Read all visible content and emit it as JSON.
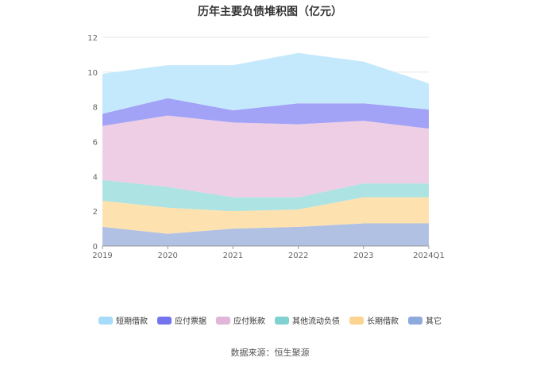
{
  "title": "历年主要负债堆积图（亿元）",
  "source": "数据来源：恒生聚源",
  "chart_data": {
    "type": "area",
    "stacked": true,
    "title": "历年主要负债堆积图（亿元）",
    "categories": [
      "2019",
      "2020",
      "2021",
      "2022",
      "2023",
      "2024Q1"
    ],
    "ylim": [
      0,
      12
    ],
    "yticks": [
      0,
      2,
      4,
      6,
      8,
      10,
      12
    ],
    "grid": true,
    "legend_position": "bottom",
    "series": [
      {
        "name": "其它",
        "color": "#b0c1e3",
        "values": [
          1.1,
          0.7,
          1.0,
          1.1,
          1.3,
          1.3
        ]
      },
      {
        "name": "长期借款",
        "color": "#fde2b0",
        "values": [
          1.5,
          1.5,
          1.0,
          1.0,
          1.5,
          1.5
        ]
      },
      {
        "name": "其他流动负债",
        "color": "#ade3e2",
        "values": [
          1.2,
          1.2,
          0.8,
          0.7,
          0.8,
          0.8
        ]
      },
      {
        "name": "应付账款",
        "color": "#eecee4",
        "values": [
          3.1,
          4.1,
          4.3,
          4.2,
          3.6,
          3.15
        ]
      },
      {
        "name": "应付票据",
        "color": "#a2a2f7",
        "values": [
          0.7,
          1.0,
          0.7,
          1.2,
          1.0,
          1.1
        ]
      },
      {
        "name": "短期借款",
        "color": "#c4e9fc",
        "values": [
          2.3,
          1.9,
          2.6,
          2.9,
          2.4,
          1.5
        ]
      }
    ]
  },
  "legend": [
    {
      "name": "短期借款",
      "color": "#a6dcf9"
    },
    {
      "name": "应付票据",
      "color": "#7474ee"
    },
    {
      "name": "应付账款",
      "color": "#e2b6d8"
    },
    {
      "name": "其他流动负债",
      "color": "#80d2d2"
    },
    {
      "name": "长期借款",
      "color": "#fbd492"
    },
    {
      "name": "其它",
      "color": "#8eaadc"
    }
  ]
}
